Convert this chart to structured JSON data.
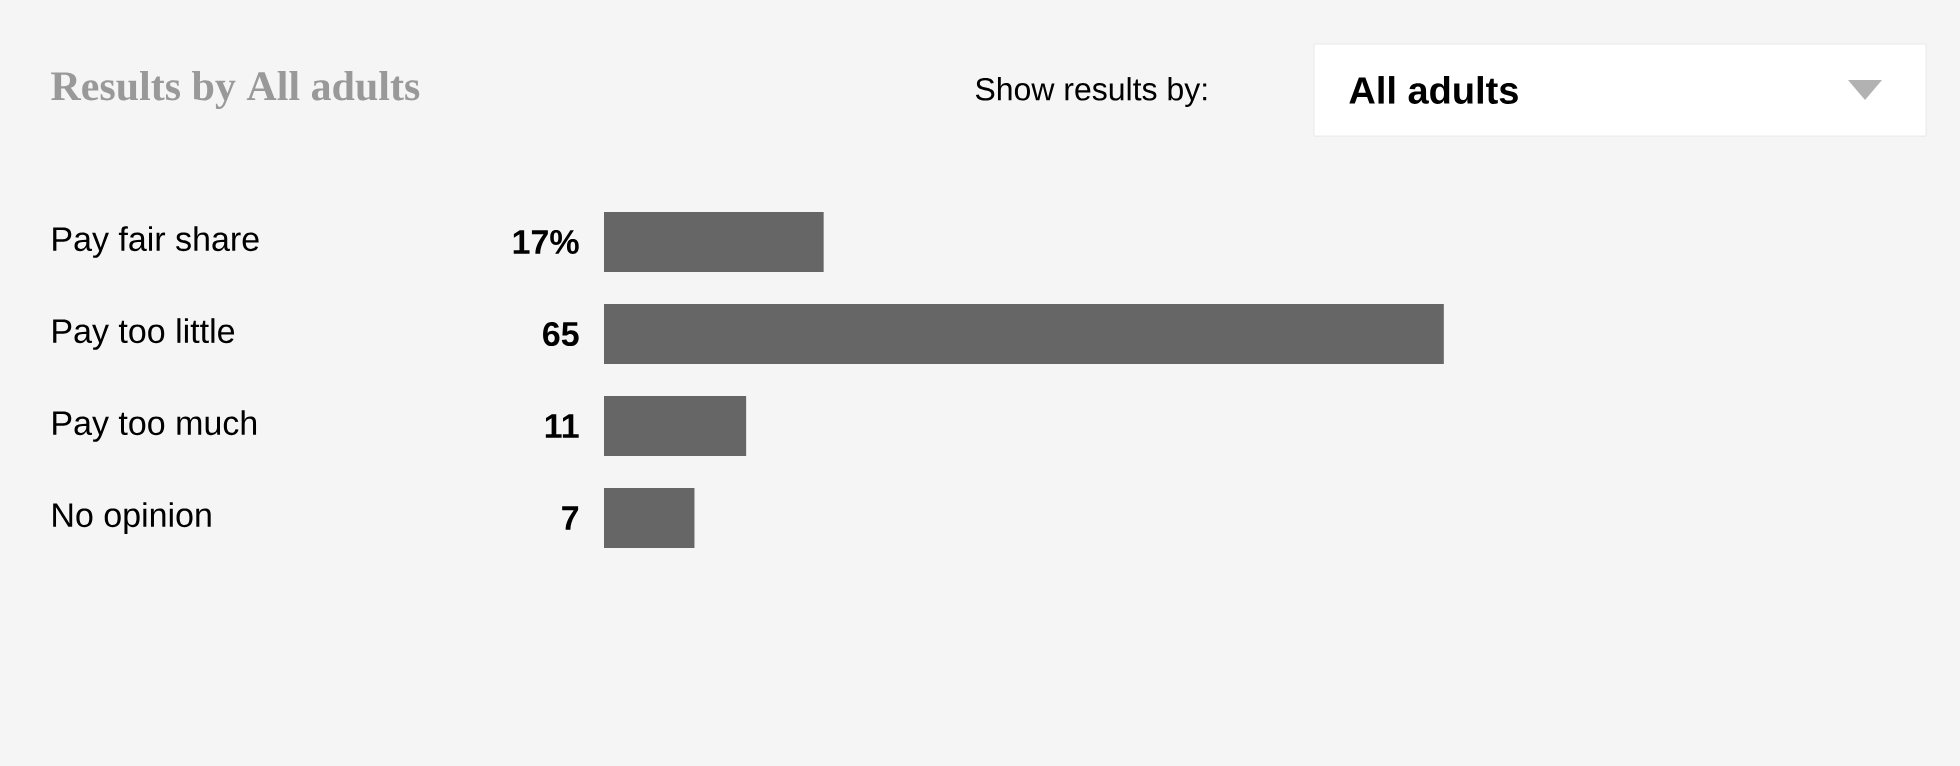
{
  "chart_data": {
    "type": "bar",
    "orientation": "horizontal",
    "title": "Results by All adults",
    "annotations": [
      "Show results by:",
      "All adults"
    ],
    "categories": [
      "Pay fair share",
      "Pay too little",
      "Pay too much",
      "No opinion"
    ],
    "values": [
      17,
      65,
      11,
      7
    ],
    "value_labels": [
      "17%",
      "65",
      "11",
      "7"
    ],
    "color": "#666666"
  }
}
